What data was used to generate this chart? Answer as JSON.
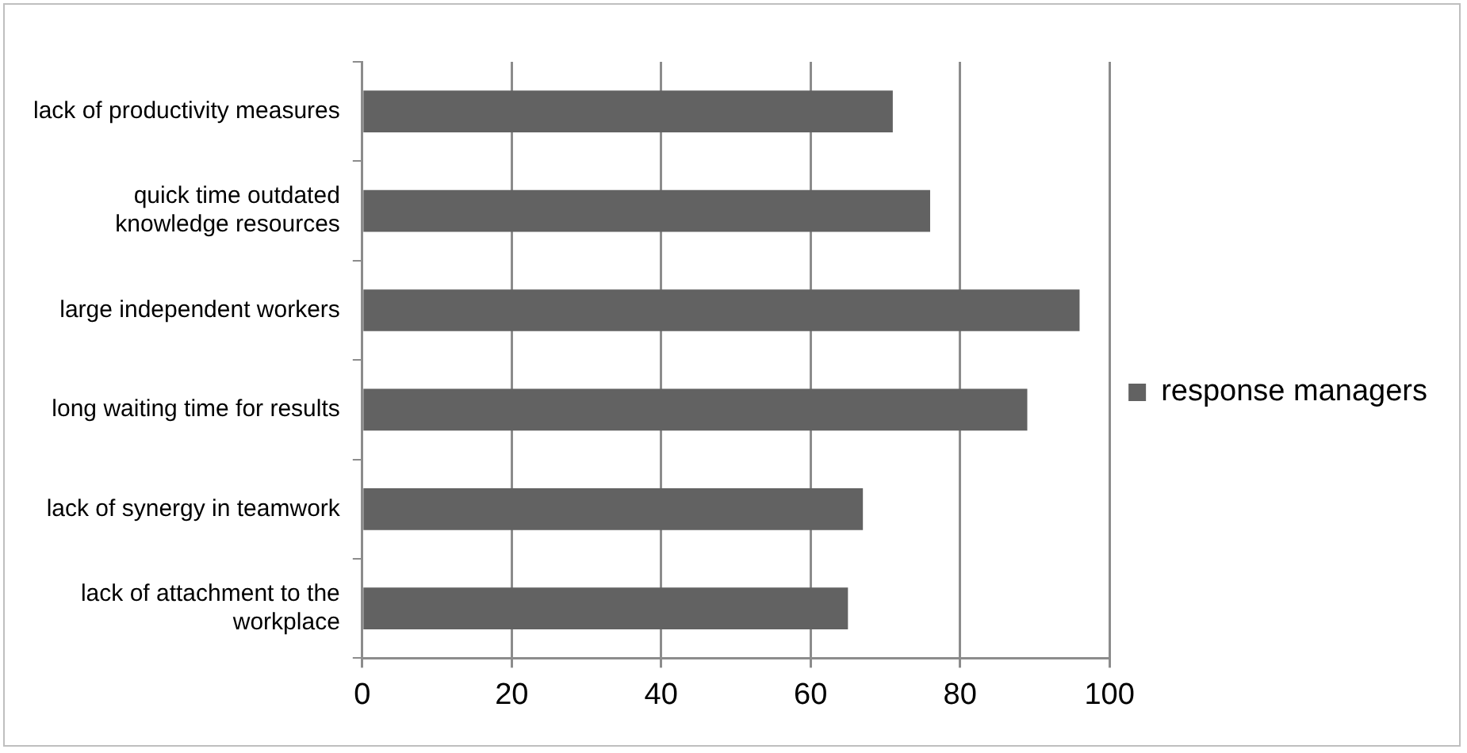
{
  "chart_data": {
    "type": "bar",
    "orientation": "horizontal",
    "categories": [
      "lack of productivity measures",
      "quick time outdated knowledge resources",
      "large independent workers",
      "long waiting time for results",
      "lack of synergy in teamwork",
      "lack of attachment to the workplace"
    ],
    "series": [
      {
        "name": "response managers",
        "color": "#626262",
        "values": [
          71,
          76,
          96,
          89,
          67,
          65
        ]
      }
    ],
    "xlim": [
      0,
      100
    ],
    "xticks": [
      0,
      20,
      40,
      60,
      80,
      100
    ],
    "grid": "x",
    "legend": "right"
  }
}
